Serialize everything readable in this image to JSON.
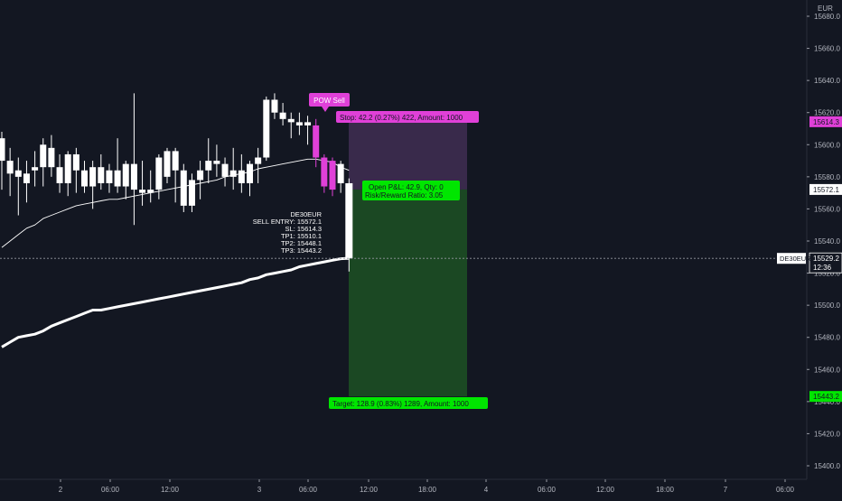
{
  "chart_data": {
    "type": "candlestick",
    "symbol": "DE30EUR",
    "currency": "EUR",
    "ylim": [
      15390,
      15690
    ],
    "y_ticks": [
      15680.0,
      15660.0,
      15640.0,
      15620.0,
      15600.0,
      15580.0,
      15560.0,
      15540.0,
      15520.0,
      15500.0,
      15480.0,
      15460.0,
      15440.0,
      15420.0,
      15400.0
    ],
    "x_ticks": [
      "2",
      "06:00",
      "12:00",
      "3",
      "06:00",
      "12:00",
      "18:00",
      "4",
      "06:00",
      "12:00",
      "18:00",
      "7",
      "06:00"
    ],
    "candles": [
      {
        "o": 15590,
        "h": 15608,
        "l": 15572,
        "c": 15604
      },
      {
        "o": 15582,
        "h": 15598,
        "l": 15568,
        "c": 15590
      },
      {
        "o": 15580,
        "h": 15592,
        "l": 15556,
        "c": 15584
      },
      {
        "o": 15576,
        "h": 15590,
        "l": 15564,
        "c": 15582
      },
      {
        "o": 15584,
        "h": 15596,
        "l": 15574,
        "c": 15586
      },
      {
        "o": 15586,
        "h": 15604,
        "l": 15574,
        "c": 15600
      },
      {
        "o": 15598,
        "h": 15606,
        "l": 15580,
        "c": 15586
      },
      {
        "o": 15586,
        "h": 15594,
        "l": 15570,
        "c": 15576
      },
      {
        "o": 15576,
        "h": 15596,
        "l": 15568,
        "c": 15594
      },
      {
        "o": 15594,
        "h": 15598,
        "l": 15570,
        "c": 15584
      },
      {
        "o": 15584,
        "h": 15590,
        "l": 15570,
        "c": 15574
      },
      {
        "o": 15574,
        "h": 15590,
        "l": 15560,
        "c": 15586
      },
      {
        "o": 15586,
        "h": 15594,
        "l": 15572,
        "c": 15576
      },
      {
        "o": 15576,
        "h": 15588,
        "l": 15570,
        "c": 15584
      },
      {
        "o": 15584,
        "h": 15604,
        "l": 15570,
        "c": 15574
      },
      {
        "o": 15574,
        "h": 15590,
        "l": 15566,
        "c": 15588
      },
      {
        "o": 15588,
        "h": 15632,
        "l": 15550,
        "c": 15572
      },
      {
        "o": 15572,
        "h": 15590,
        "l": 15562,
        "c": 15570
      },
      {
        "o": 15570,
        "h": 15584,
        "l": 15564,
        "c": 15572
      },
      {
        "o": 15572,
        "h": 15594,
        "l": 15566,
        "c": 15592
      },
      {
        "o": 15580,
        "h": 15598,
        "l": 15576,
        "c": 15596
      },
      {
        "o": 15596,
        "h": 15598,
        "l": 15564,
        "c": 15584
      },
      {
        "o": 15584,
        "h": 15588,
        "l": 15558,
        "c": 15562
      },
      {
        "o": 15562,
        "h": 15582,
        "l": 15558,
        "c": 15578
      },
      {
        "o": 15578,
        "h": 15590,
        "l": 15566,
        "c": 15584
      },
      {
        "o": 15584,
        "h": 15604,
        "l": 15576,
        "c": 15590
      },
      {
        "o": 15590,
        "h": 15600,
        "l": 15580,
        "c": 15588
      },
      {
        "o": 15588,
        "h": 15592,
        "l": 15574,
        "c": 15580
      },
      {
        "o": 15580,
        "h": 15598,
        "l": 15572,
        "c": 15584
      },
      {
        "o": 15584,
        "h": 15594,
        "l": 15570,
        "c": 15576
      },
      {
        "o": 15576,
        "h": 15590,
        "l": 15568,
        "c": 15588
      },
      {
        "o": 15588,
        "h": 15598,
        "l": 15576,
        "c": 15592
      },
      {
        "o": 15592,
        "h": 15630,
        "l": 15590,
        "c": 15628
      },
      {
        "o": 15628,
        "h": 15632,
        "l": 15616,
        "c": 15620
      },
      {
        "o": 15620,
        "h": 15626,
        "l": 15612,
        "c": 15616
      },
      {
        "o": 15616,
        "h": 15620,
        "l": 15604,
        "c": 15614
      },
      {
        "o": 15614,
        "h": 15620,
        "l": 15606,
        "c": 15612
      },
      {
        "o": 15612,
        "h": 15618,
        "l": 15600,
        "c": 15614
      },
      {
        "o": 15612,
        "h": 15616,
        "l": 15586,
        "c": 15592
      },
      {
        "o": 15592,
        "h": 15594,
        "l": 15570,
        "c": 15574
      },
      {
        "o": 15590,
        "h": 15592,
        "l": 15568,
        "c": 15572
      },
      {
        "o": 15588,
        "h": 15590,
        "l": 15570,
        "c": 15576
      },
      {
        "o": 15576,
        "h": 15579,
        "l": 15521,
        "c": 15529.2
      }
    ],
    "bull_candle_indices": [],
    "pink_candle_indices": [
      38,
      39,
      40
    ],
    "last_candle_index": 42,
    "ma_thin": [
      15536,
      15540,
      15544,
      15548,
      15550,
      15554,
      15556,
      15558,
      15560,
      15562,
      15563,
      15564,
      15565,
      15566,
      15566,
      15567,
      15568,
      15569,
      15570,
      15571,
      15572,
      15573,
      15574,
      15575,
      15576,
      15577,
      15578,
      15580,
      15581,
      15582,
      15583,
      15585,
      15586,
      15587,
      15588,
      15589,
      15590,
      15591,
      15591,
      15590,
      15589,
      15586,
      15584
    ],
    "ma_thick": [
      15474,
      15477,
      15480,
      15481,
      15482,
      15484,
      15487,
      15489,
      15491,
      15493,
      15495,
      15497,
      15497,
      15498,
      15499,
      15500,
      15501,
      15502,
      15503,
      15504,
      15505,
      15506,
      15507,
      15508,
      15509,
      15510,
      15511,
      15512,
      15513,
      15514,
      15516,
      15517,
      15519,
      15520,
      15521,
      15522,
      15524,
      15525,
      15526,
      15527,
      15528,
      15529,
      15529.2
    ],
    "position": {
      "entry": 15572.1,
      "stop": 15614.3,
      "target": 15443.2,
      "stop_label": "Stop: 42.2 (0.27%) 422, Amount: 1000",
      "target_label": "Target: 128.9 (0.83%) 1289, Amount: 1000",
      "open_pnl_label": "Open P&L: 42.9, Qty: 0",
      "rr_label": "Risk/Reward Ratio: 3.05"
    },
    "signal_label": "POW Sell",
    "info_lines": [
      "DE30EUR",
      "SELL ENTRY: 15572.1",
      "SL: 15614.3",
      "TP1: 15510.1",
      "TP2: 15448.1",
      "TP3: 15443.2"
    ],
    "price_labels": {
      "stop": "15614.3",
      "entry": "15572.1",
      "current": "15529.2",
      "current_time": "12:36",
      "target": "15443.2",
      "symbol_tag": "DE30EUR"
    },
    "colors": {
      "background": "#131722",
      "candle": "#ffffff",
      "signal_pink": "#e040d8",
      "stop_zone": "#5a3a6e",
      "target_zone": "#1f5a24",
      "target_green": "#00e600",
      "axis_text": "#b2b5be"
    }
  }
}
